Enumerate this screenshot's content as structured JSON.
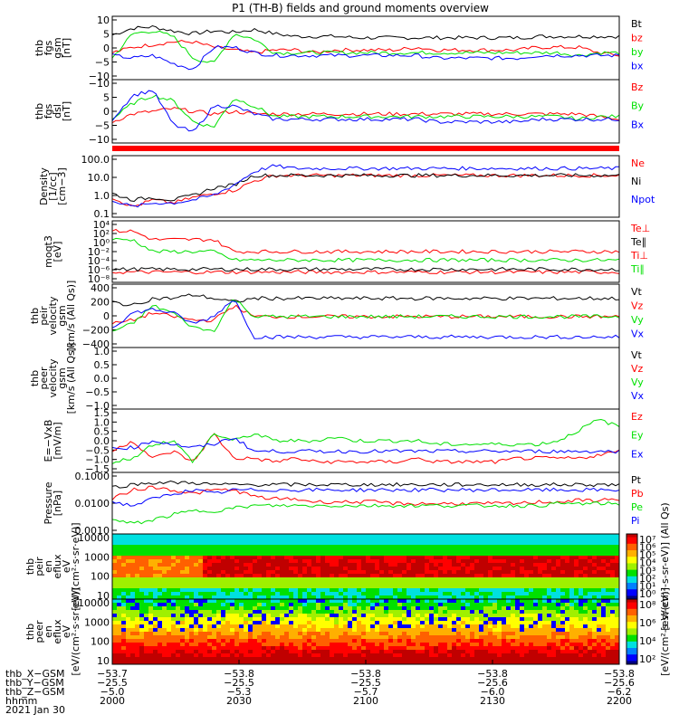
{
  "title": "P1 (TH-B) fields and ground moments overview",
  "colors": {
    "black": "#000000",
    "red": "#ff0000",
    "green": "#00e000",
    "blue": "#0000ff"
  },
  "chart_data": [
    {
      "type": "line",
      "key": "fgs_gsm",
      "ylabel_lines": [
        "thb",
        "fgs",
        "gsm",
        "[nT]"
      ],
      "yticks": [
        "10",
        "5",
        "0",
        "−5",
        "−10"
      ],
      "series": [
        {
          "name": "Bt",
          "color": "black",
          "values": [
            5.5,
            8,
            8.5,
            7,
            6,
            7,
            6.5,
            7.5,
            6,
            5,
            5,
            5,
            4.5,
            4.5,
            4.5,
            4.5,
            4.5,
            4.5,
            4.5,
            4.5,
            4.5,
            5,
            5,
            5,
            5,
            5
          ]
        },
        {
          "name": "bz",
          "color": "red",
          "values": [
            -1,
            1,
            2,
            3,
            3,
            1,
            0,
            -1,
            0,
            0,
            -1,
            0,
            0,
            0,
            0,
            1,
            0,
            0,
            0,
            0,
            0,
            1,
            1,
            1,
            -1,
            -2
          ]
        },
        {
          "name": "by",
          "color": "green",
          "values": [
            -3,
            6,
            7,
            5,
            -3,
            -5,
            6,
            4,
            -1,
            -1,
            -1,
            -1,
            -1,
            -1,
            -1,
            -1,
            -1,
            -1,
            -1,
            -1,
            -1,
            -1,
            -1,
            -2,
            -1,
            -1
          ]
        },
        {
          "name": "bx",
          "color": "blue",
          "values": [
            -2,
            -3,
            -2,
            -5,
            -7,
            1,
            1,
            -1,
            -2,
            -2,
            -2,
            -2,
            -2,
            -2,
            -2,
            -2,
            -3,
            -3,
            -3,
            -3,
            -3,
            -2,
            -2,
            -2,
            -2,
            -2
          ]
        }
      ]
    },
    {
      "type": "line",
      "key": "fgs_dsl",
      "ylabel_lines": [
        "thb",
        "fgs",
        "dsl",
        "[nT]"
      ],
      "yticks": [
        "−10",
        "5",
        "0",
        "−5",
        "−10"
      ],
      "series": [
        {
          "name": "Bz",
          "color": "red",
          "values": [
            -3,
            0,
            1,
            2,
            1,
            0,
            1,
            0,
            0,
            0,
            0,
            0,
            0,
            0,
            0,
            0,
            0,
            0,
            0,
            0,
            0,
            0,
            0,
            0,
            -1,
            -2
          ]
        },
        {
          "name": "By",
          "color": "green",
          "values": [
            -2,
            4,
            7,
            5,
            -3,
            -5,
            6,
            3,
            -1,
            -1,
            -1,
            -1,
            -1,
            -1,
            -1,
            -1,
            -1,
            -1,
            -1,
            -1,
            -1,
            -1,
            -1,
            -2,
            -1,
            -1
          ]
        },
        {
          "name": "Bx",
          "color": "blue",
          "values": [
            -2,
            7,
            9,
            -4,
            -7,
            3,
            3,
            0,
            -2,
            -2,
            -2,
            -2,
            -2,
            -2,
            -2,
            -2,
            -3,
            -3,
            -3,
            -3,
            -3,
            -2,
            -2,
            -2,
            -2,
            -2
          ]
        }
      ]
    },
    {
      "type": "line",
      "key": "density",
      "scale": "log",
      "ylabel_lines": [
        "Density",
        "[1/cc]",
        "[cm−3]"
      ],
      "yticks": [
        "100.0",
        "10.0",
        "1.0",
        "0.1"
      ],
      "series": [
        {
          "name": "Ne",
          "color": "red",
          "values": [
            0.6,
            0.3,
            0.5,
            0.4,
            0.6,
            0.8,
            1,
            2,
            3,
            3,
            3,
            3,
            3,
            3,
            3,
            3,
            3,
            3,
            3,
            3,
            3,
            3,
            3,
            3,
            3,
            3
          ]
        },
        {
          "name": "Ni",
          "color": "black",
          "values": [
            0.8,
            0.5,
            0.6,
            0.5,
            0.7,
            1.2,
            1.5,
            3,
            3,
            3,
            3,
            3,
            3,
            3,
            3,
            3,
            3,
            3,
            3,
            3,
            3,
            3,
            3,
            3,
            3,
            3
          ]
        },
        {
          "name": "Npot",
          "color": "blue",
          "values": [
            0.5,
            0.3,
            0.4,
            0.4,
            0.5,
            0.7,
            1.5,
            4,
            6,
            5,
            5,
            5,
            5,
            5,
            5,
            5,
            5,
            5,
            5,
            5,
            5,
            5,
            5,
            5,
            5,
            5
          ]
        }
      ]
    },
    {
      "type": "line",
      "key": "temperature",
      "scale": "log",
      "ylabel_lines": [
        "moqt3",
        "[eV]"
      ],
      "yticks": [
        "10⁴",
        "10²",
        "10⁰",
        "10⁻²",
        "10⁻⁴",
        "10⁻⁶",
        "10⁻⁸"
      ],
      "series": [
        {
          "name": "Te⊥",
          "color": "red",
          "values": [
            100,
            100,
            100,
            100,
            100,
            100,
            100,
            100,
            100,
            100,
            100,
            100,
            100,
            100,
            100,
            100,
            100,
            100,
            100,
            100,
            100,
            100,
            100,
            100,
            100,
            100
          ]
        },
        {
          "name": "Te∥",
          "color": "black",
          "values": [
            110,
            110,
            110,
            110,
            110,
            110,
            110,
            110,
            110,
            110,
            110,
            110,
            110,
            110,
            110,
            110,
            110,
            110,
            110,
            110,
            110,
            110,
            110,
            110,
            110,
            110
          ]
        },
        {
          "name": "Ti⊥",
          "color": "red",
          "values": [
            400,
            400,
            300,
            300,
            300,
            300,
            200,
            200,
            200,
            200,
            200,
            200,
            200,
            200,
            200,
            200,
            200,
            200,
            200,
            200,
            200,
            200,
            200,
            200,
            200,
            200
          ]
        },
        {
          "name": "Ti∥",
          "color": "green",
          "values": [
            300,
            300,
            200,
            200,
            200,
            200,
            150,
            150,
            150,
            150,
            150,
            150,
            150,
            150,
            150,
            150,
            150,
            150,
            150,
            150,
            150,
            150,
            150,
            150,
            150,
            150
          ]
        }
      ]
    },
    {
      "type": "line",
      "key": "peir_velocity",
      "ylabel_lines": [
        "thb",
        "peir",
        "velocity",
        "gsm",
        "[km/s (All Qs)]"
      ],
      "yticks": [
        "400",
        "200",
        "0",
        "−200",
        "−400"
      ],
      "series": [
        {
          "name": "Vt",
          "color": "black",
          "values": [
            200,
            150,
            250,
            250,
            300,
            250,
            200,
            250,
            250,
            250,
            250,
            250,
            250,
            250,
            250,
            250,
            250,
            250,
            250,
            250,
            250,
            250,
            250,
            250,
            250,
            250
          ]
        },
        {
          "name": "Vz",
          "color": "red",
          "values": [
            -100,
            -50,
            50,
            0,
            -50,
            -50,
            150,
            0,
            0,
            0,
            0,
            0,
            0,
            0,
            0,
            0,
            0,
            0,
            0,
            0,
            0,
            0,
            0,
            0,
            0,
            0
          ]
        },
        {
          "name": "Vy",
          "color": "green",
          "values": [
            -200,
            -100,
            150,
            50,
            -150,
            -200,
            250,
            0,
            0,
            0,
            0,
            0,
            0,
            0,
            0,
            0,
            0,
            0,
            0,
            0,
            0,
            0,
            0,
            0,
            0,
            0
          ]
        },
        {
          "name": "Vx",
          "color": "blue",
          "values": [
            -150,
            50,
            100,
            50,
            -100,
            0,
            250,
            -280,
            -280,
            -280,
            -280,
            -280,
            -280,
            -280,
            -280,
            -280,
            -280,
            -280,
            -280,
            -280,
            -280,
            -280,
            -280,
            -280,
            -280,
            -280
          ]
        }
      ]
    },
    {
      "type": "line",
      "key": "peer_velocity",
      "ylabel_lines": [
        "thb",
        "peer",
        "velocity",
        "gsm",
        "[km/s (All Qs)]"
      ],
      "yticks": [
        "1.0",
        "0.5",
        "0.0",
        "−0.5",
        "−1.0"
      ],
      "series": [
        {
          "name": "Vt",
          "color": "black",
          "values": []
        },
        {
          "name": "Vz",
          "color": "red",
          "values": []
        },
        {
          "name": "Vy",
          "color": "green",
          "values": []
        },
        {
          "name": "Vx",
          "color": "blue",
          "values": []
        }
      ]
    },
    {
      "type": "line",
      "key": "efield",
      "ylabel_lines": [
        "E=−VxB",
        "[mV/m]"
      ],
      "yticks": [
        "1.5",
        "1.0",
        "0.5",
        "0.0",
        "−0.5",
        "−1.0",
        "−1.5"
      ],
      "series": [
        {
          "name": "Ez",
          "color": "red",
          "values": [
            0,
            0.3,
            -0.2,
            0,
            -0.3,
            0.5,
            -0.2,
            -0.2,
            -0.3,
            -0.2,
            -0.3,
            -0.3,
            -0.3,
            -0.3,
            -0.3,
            -0.2,
            -0.3,
            -0.3,
            -0.3,
            -0.3,
            -0.2,
            -0.2,
            -0.2,
            -0.2,
            -0.1,
            0
          ]
        },
        {
          "name": "Ey",
          "color": "green",
          "values": [
            -0.3,
            -0.2,
            0.2,
            0.3,
            -0.3,
            0.5,
            0.3,
            0.5,
            0.3,
            0.3,
            0.3,
            0.4,
            0.3,
            0.3,
            0.3,
            0.3,
            0.2,
            0.2,
            0.2,
            0.2,
            0.2,
            0.2,
            0.3,
            0.6,
            0.9,
            0.7
          ]
        },
        {
          "name": "Ex",
          "color": "blue",
          "values": [
            0.1,
            0.1,
            0.3,
            0.2,
            0.1,
            0.2,
            0.4,
            0,
            0,
            0,
            0,
            0,
            0,
            0,
            0,
            0,
            0,
            0,
            0,
            0,
            0,
            0,
            0,
            0,
            0,
            0
          ]
        }
      ]
    },
    {
      "type": "line",
      "key": "pressure",
      "scale": "log",
      "ylabel_lines": [
        "Pressure",
        "[nPa]"
      ],
      "yticks": [
        "0.1000",
        "0.0100",
        "0.0010"
      ],
      "series": [
        {
          "name": "Pt",
          "color": "black",
          "values": [
            0.025,
            0.03,
            0.035,
            0.035,
            0.035,
            0.03,
            0.03,
            0.03,
            0.03,
            0.03,
            0.03,
            0.03,
            0.03,
            0.03,
            0.03,
            0.03,
            0.03,
            0.03,
            0.03,
            0.03,
            0.03,
            0.03,
            0.03,
            0.03,
            0.03,
            0.03
          ]
        },
        {
          "name": "Pb",
          "color": "red",
          "values": [
            0.01,
            0.02,
            0.025,
            0.02,
            0.015,
            0.02,
            0.02,
            0.012,
            0.01,
            0.01,
            0.008,
            0.008,
            0.008,
            0.008,
            0.007,
            0.007,
            0.007,
            0.007,
            0.007,
            0.007,
            0.007,
            0.008,
            0.008,
            0.009,
            0.009,
            0.01
          ]
        },
        {
          "name": "Pe",
          "color": "green",
          "values": [
            0.002,
            0.0015,
            0.002,
            0.003,
            0.004,
            0.004,
            0.005,
            0.006,
            0.006,
            0.006,
            0.006,
            0.006,
            0.006,
            0.006,
            0.006,
            0.006,
            0.006,
            0.006,
            0.006,
            0.006,
            0.006,
            0.006,
            0.007,
            0.007,
            0.007,
            0.007
          ]
        },
        {
          "name": "Pi",
          "color": "blue",
          "values": [
            0.008,
            0.006,
            0.01,
            0.015,
            0.02,
            0.015,
            0.02,
            0.02,
            0.02,
            0.02,
            0.02,
            0.02,
            0.02,
            0.02,
            0.02,
            0.02,
            0.02,
            0.02,
            0.02,
            0.02,
            0.02,
            0.02,
            0.02,
            0.02,
            0.02,
            0.02
          ]
        }
      ]
    },
    {
      "type": "heatmap",
      "key": "peir_spec",
      "ylabel_lines": [
        "thb",
        "peir",
        "en",
        "eflux",
        "eV",
        "[eV/(cm²·s·sr·eV)]"
      ],
      "yticks": [
        "10000",
        "1000",
        "100",
        "10"
      ],
      "colorbar_ticks": [
        "10⁷",
        "10⁶",
        "10⁵",
        "10⁴",
        "10³",
        "10²",
        "10¹",
        "10⁰"
      ],
      "colorbar_label": "[eV/(cm²-s-sr-eV)] (All Qs)"
    },
    {
      "type": "heatmap",
      "key": "peer_spec",
      "ylabel_lines": [
        "thb",
        "peer",
        "en",
        "eflux",
        "eV",
        "[eV/(cm²·s·sr·eV)]"
      ],
      "yticks": [
        "10000",
        "1000",
        "100",
        "10"
      ],
      "colorbar_ticks": [
        "10⁸",
        "10⁶",
        "10⁴",
        "10²"
      ],
      "colorbar_label": "[eV/(cm²-s-sr-eV)]"
    }
  ],
  "x_axis": {
    "row_labels": [
      "thb_X−GSM",
      "thb_Y−GSM",
      "thb_Z−GSM",
      "hhmm",
      "2021 Jan 30"
    ],
    "ticks": [
      {
        "x": "−53.7",
        "y": "−25.5",
        "z": "−5.0",
        "t": "2000"
      },
      {
        "x": "−53.8",
        "y": "−25.5",
        "z": "−5.3",
        "t": "2030"
      },
      {
        "x": "−53.8",
        "y": "−25.5",
        "z": "−5.7",
        "t": "2100"
      },
      {
        "x": "−53.8",
        "y": "−25.6",
        "z": "−6.0",
        "t": "2130"
      },
      {
        "x": "−53.8",
        "y": "−25.6",
        "z": "−6.2",
        "t": "2200"
      }
    ]
  },
  "footer_label": "[eV/(cm²-s-sr-eV)] (All Qs)"
}
